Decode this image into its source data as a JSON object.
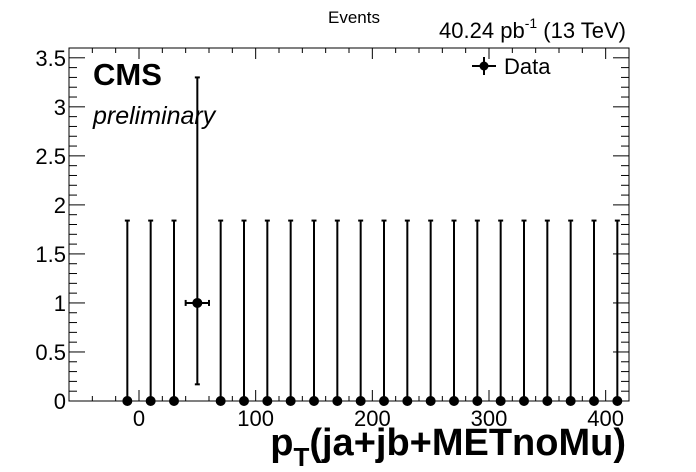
{
  "chart_data": {
    "type": "scatter",
    "ylabel": "Events",
    "xlabel_main": "p",
    "xlabel_sub": "T",
    "xlabel_rest": "(ja+jb+METnoMu)",
    "lumi_prefix": "40.24 pb",
    "lumi_sup": "-1",
    "lumi_suffix": " (13 TeV)",
    "cms_label": "CMS",
    "extra_label": "preliminary",
    "legend": {
      "label": "Data",
      "placement": "top-right"
    },
    "xlim": [
      -60,
      420
    ],
    "ylim": [
      0,
      3.6
    ],
    "x_ticks": [
      0,
      100,
      200,
      300,
      400
    ],
    "x_tick_labels": [
      "0",
      "100",
      "200",
      "300",
      "400"
    ],
    "y_ticks": [
      0,
      0.5,
      1,
      1.5,
      2,
      2.5,
      3,
      3.5
    ],
    "y_tick_labels": [
      "0",
      "0.5",
      "1",
      "1.5",
      "2",
      "2.5",
      "3",
      "3.5"
    ],
    "bin_width": 20,
    "points": [
      {
        "x": -10,
        "y": 0,
        "err_low": 0,
        "err_high": 1.84
      },
      {
        "x": 10,
        "y": 0,
        "err_low": 0,
        "err_high": 1.84
      },
      {
        "x": 30,
        "y": 0,
        "err_low": 0,
        "err_high": 1.84
      },
      {
        "x": 50,
        "y": 1,
        "err_low": 0.83,
        "err_high": 2.3
      },
      {
        "x": 70,
        "y": 0,
        "err_low": 0,
        "err_high": 1.84
      },
      {
        "x": 90,
        "y": 0,
        "err_low": 0,
        "err_high": 1.84
      },
      {
        "x": 110,
        "y": 0,
        "err_low": 0,
        "err_high": 1.84
      },
      {
        "x": 130,
        "y": 0,
        "err_low": 0,
        "err_high": 1.84
      },
      {
        "x": 150,
        "y": 0,
        "err_low": 0,
        "err_high": 1.84
      },
      {
        "x": 170,
        "y": 0,
        "err_low": 0,
        "err_high": 1.84
      },
      {
        "x": 190,
        "y": 0,
        "err_low": 0,
        "err_high": 1.84
      },
      {
        "x": 210,
        "y": 0,
        "err_low": 0,
        "err_high": 1.84
      },
      {
        "x": 230,
        "y": 0,
        "err_low": 0,
        "err_high": 1.84
      },
      {
        "x": 250,
        "y": 0,
        "err_low": 0,
        "err_high": 1.84
      },
      {
        "x": 270,
        "y": 0,
        "err_low": 0,
        "err_high": 1.84
      },
      {
        "x": 290,
        "y": 0,
        "err_low": 0,
        "err_high": 1.84
      },
      {
        "x": 310,
        "y": 0,
        "err_low": 0,
        "err_high": 1.84
      },
      {
        "x": 330,
        "y": 0,
        "err_low": 0,
        "err_high": 1.84
      },
      {
        "x": 350,
        "y": 0,
        "err_low": 0,
        "err_high": 1.84
      },
      {
        "x": 370,
        "y": 0,
        "err_low": 0,
        "err_high": 1.84
      },
      {
        "x": 390,
        "y": 0,
        "err_low": 0,
        "err_high": 1.84
      },
      {
        "x": 410,
        "y": 0,
        "err_low": 0,
        "err_high": 1.84
      }
    ],
    "grid": false,
    "colors": {
      "marker": "#000000",
      "axis": "#000000",
      "background": "#ffffff"
    }
  }
}
